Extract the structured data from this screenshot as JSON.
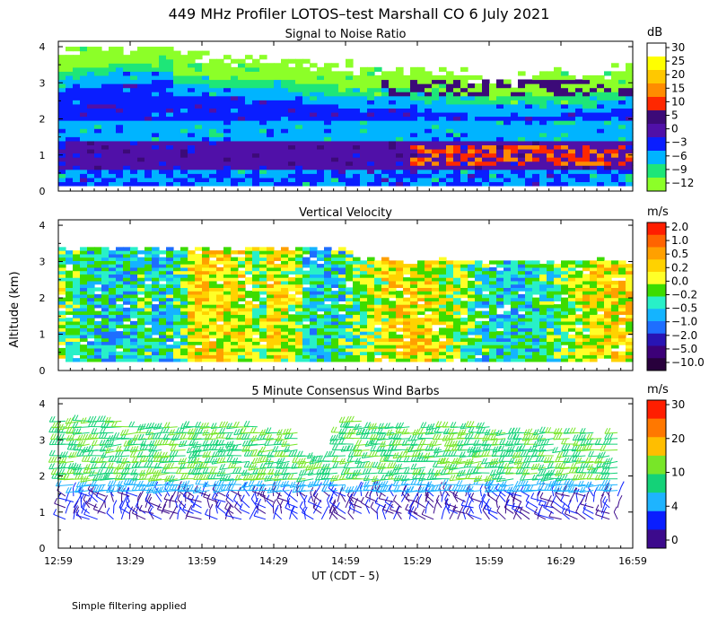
{
  "figure": {
    "title": "449 MHz Profiler LOTOS–test Marshall CO  6 July 2021",
    "ylabel": "Altitude (km)",
    "xlabel": "UT  (CDT – 5)",
    "footnote": "Simple filtering applied",
    "x_tick_labels": [
      "12:59",
      "13:29",
      "13:59",
      "14:29",
      "14:59",
      "15:29",
      "15:59",
      "16:29",
      "16:59"
    ],
    "y_tick_labels": [
      "0",
      "1",
      "2",
      "3",
      "4"
    ]
  },
  "chart_data": [
    {
      "type": "heatmap",
      "title": "Signal to Noise Ratio",
      "colorbar_unit": "dB",
      "colorbar_labels": [
        "30",
        "25",
        "20",
        "15",
        "10",
        "5",
        "0",
        "−3",
        "−6",
        "−9",
        "−12"
      ],
      "colorbar_colors": [
        "#ffffff",
        "#ffff00",
        "#ffc800",
        "#ff8c00",
        "#ff2800",
        "#3c0a78",
        "#5010a8",
        "#0a1eff",
        "#00b4ff",
        "#1ee678",
        "#8cff28"
      ],
      "x_range": [
        "12:59",
        "16:59"
      ],
      "ylim": [
        0,
        4
      ]
    },
    {
      "type": "heatmap",
      "title": "Vertical Velocity",
      "colorbar_unit": "m/s",
      "colorbar_labels": [
        "2.0",
        "1.0",
        "0.5",
        "0.2",
        "0.0",
        "−0.2",
        "−0.5",
        "−1.0",
        "−2.0",
        "−5.0",
        "−10.0"
      ],
      "colorbar_colors": [
        "#ff1e00",
        "#ff6400",
        "#ffa000",
        "#ffd200",
        "#ffff28",
        "#3cdc00",
        "#28f0c8",
        "#14b4ff",
        "#1e6eff",
        "#2814b4",
        "#3c0078",
        "#28003c"
      ],
      "x_range": [
        "12:59",
        "16:59"
      ],
      "ylim": [
        0,
        4
      ]
    },
    {
      "type": "scatter",
      "title": "5 Minute Consensus Wind Barbs",
      "colorbar_unit": "m/s",
      "colorbar_labels": [
        "30",
        "20",
        "10",
        "4",
        "0"
      ],
      "colorbar_colors": [
        "#ff1e00",
        "#ff7800",
        "#ffbe00",
        "#78e628",
        "#14d278",
        "#1eb4ff",
        "#0a1eff",
        "#3c0a8c"
      ],
      "x_range": [
        "12:59",
        "16:59"
      ],
      "ylim": [
        0,
        4
      ]
    }
  ]
}
